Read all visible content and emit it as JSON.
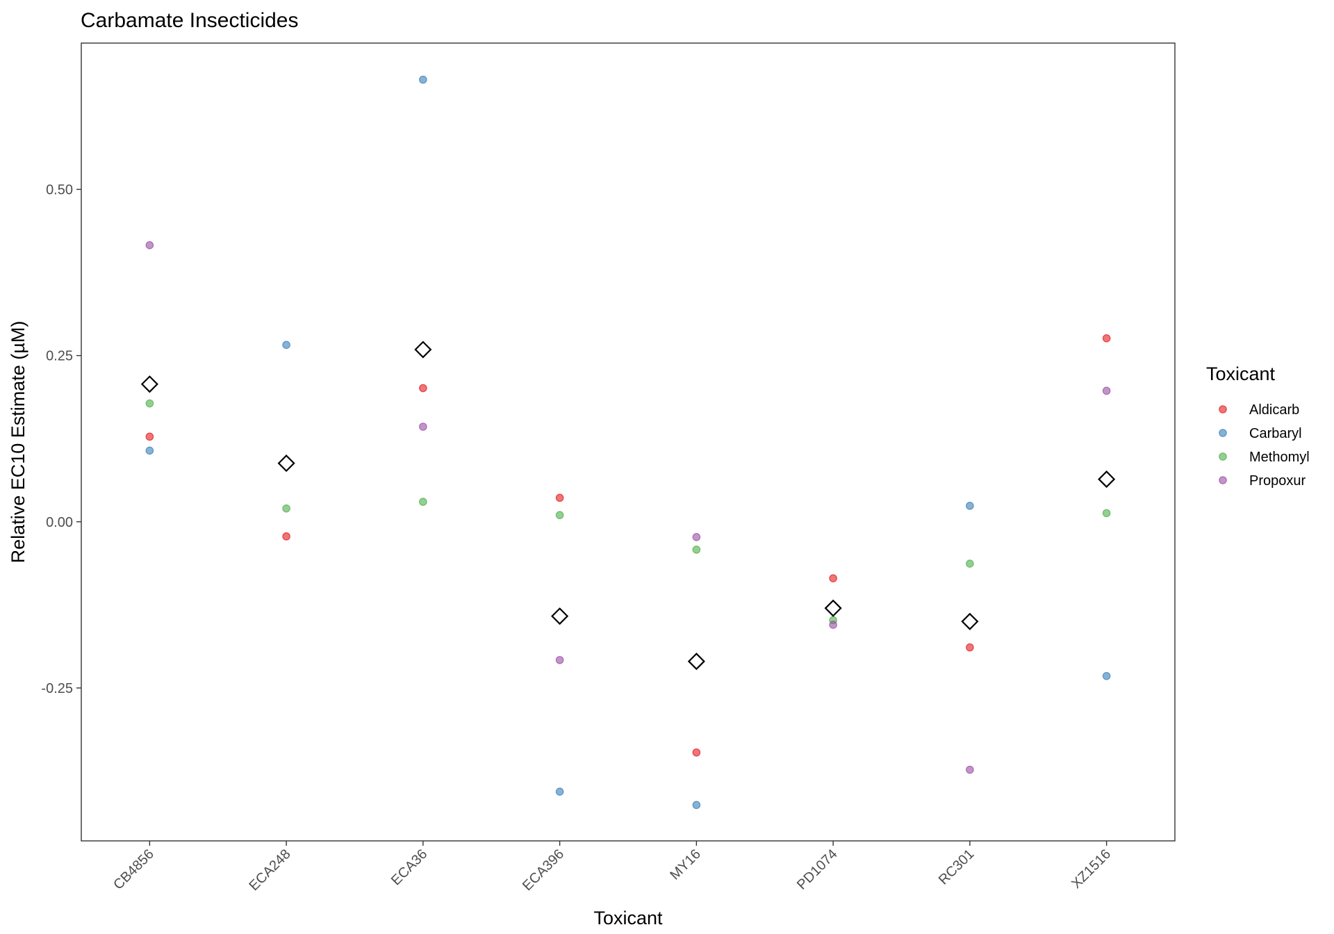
{
  "chart_data": {
    "type": "scatter",
    "title": "Carbamate Insecticides",
    "xlabel": "Toxicant",
    "ylabel": "Relative EC10 Estimate (µM)",
    "categories": [
      "CB4856",
      "ECA248",
      "ECA36",
      "ECA396",
      "MY16",
      "PD1074",
      "RC301",
      "XZ1516"
    ],
    "ylim": [
      -0.48,
      0.72
    ],
    "yticks": [
      -0.25,
      0.0,
      0.25,
      0.5
    ],
    "ytick_labels": [
      "-0.25",
      "0.00",
      "0.25",
      "0.50"
    ],
    "grid": false,
    "legend": {
      "title": "Toxicant",
      "position": "right"
    },
    "series": [
      {
        "name": "Aldicarb",
        "color": "#E41A1C",
        "values": [
          0.128,
          -0.022,
          0.201,
          0.036,
          -0.347,
          -0.085,
          -0.189,
          0.276
        ]
      },
      {
        "name": "Carbaryl",
        "color": "#377EB8",
        "values": [
          0.107,
          0.266,
          0.665,
          -0.406,
          -0.426,
          null,
          0.024,
          -0.232
        ]
      },
      {
        "name": "Methomyl",
        "color": "#4DAF4A",
        "values": [
          0.178,
          0.02,
          0.03,
          0.01,
          -0.042,
          -0.148,
          -0.063,
          0.013
        ]
      },
      {
        "name": "Propoxur",
        "color": "#984EA3",
        "values": [
          0.416,
          null,
          0.143,
          -0.208,
          -0.023,
          -0.155,
          -0.373,
          0.197
        ]
      }
    ],
    "mean_markers": {
      "shape": "diamond-open",
      "values": [
        0.207,
        0.088,
        0.259,
        -0.142,
        -0.21,
        -0.13,
        -0.15,
        0.064
      ]
    }
  }
}
